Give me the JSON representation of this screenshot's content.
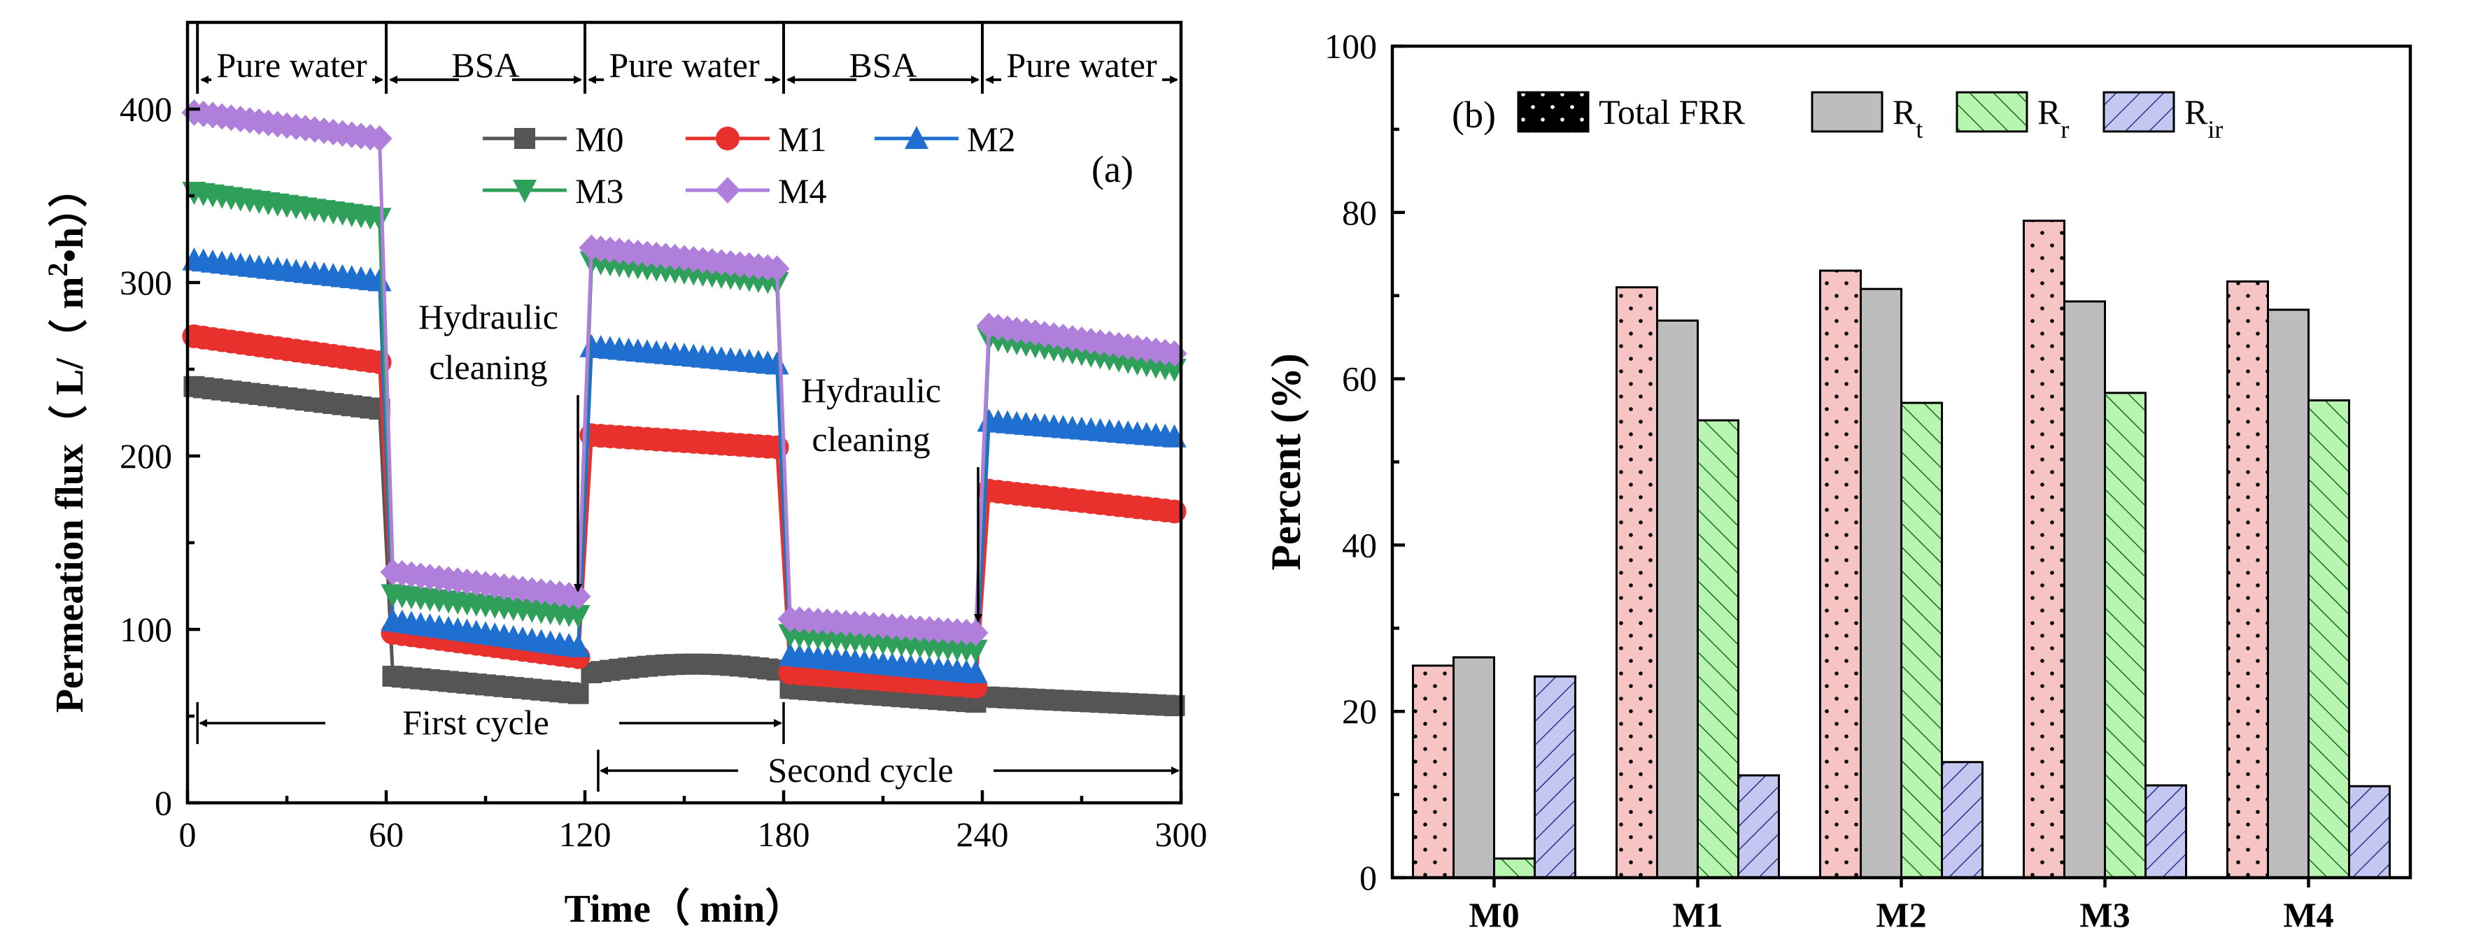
{
  "chart_data": [
    {
      "type": "line",
      "panel_label": "(a)",
      "xlabel": "Time（ min）",
      "ylabel": "Permeation flux（ L/（ m²•h））",
      "ylabel_parts": [
        "Permeation flux（ L/（ m",
        "2",
        "•h））"
      ],
      "xlim": [
        0,
        300
      ],
      "ylim": [
        0,
        450
      ],
      "x_ticks": [
        "0",
        "60",
        "120",
        "180",
        "240",
        "300"
      ],
      "y_ticks": [
        "0",
        "100",
        "200",
        "300",
        "400"
      ],
      "segment_labels": [
        "Pure water",
        "BSA",
        "Pure water",
        "BSA",
        "Pure water"
      ],
      "segment_bounds": [
        3,
        60,
        120,
        180,
        240,
        300
      ],
      "annotations": {
        "hydraulic_1": [
          "Hydraulic",
          "cleaning"
        ],
        "hydraulic_2": [
          "Hydraulic",
          "cleaning"
        ],
        "first_cycle": "First cycle",
        "second_cycle": "Second cycle"
      },
      "legend_position": "top",
      "series": [
        {
          "name": "M0",
          "color": "#555555",
          "marker": "square",
          "segments": [
            [
              240,
              227
            ],
            [
              73,
              63
            ],
            [
              75,
              80
            ],
            [
              66,
              58
            ],
            [
              61,
              56
            ]
          ]
        },
        {
          "name": "M1",
          "color": "#e8312d",
          "marker": "circle",
          "segments": [
            [
              269,
              254
            ],
            [
              98,
              84
            ],
            [
              212,
              205
            ],
            [
              75,
              67
            ],
            [
              180,
              168
            ]
          ]
        },
        {
          "name": "M2",
          "color": "#1f6fd0",
          "marker": "triangle-up",
          "segments": [
            [
              313,
              301
            ],
            [
              105,
              90
            ],
            [
              263,
              253
            ],
            [
              85,
              75
            ],
            [
              220,
              211
            ]
          ]
        },
        {
          "name": "M3",
          "color": "#2ea05a",
          "marker": "triangle-down",
          "segments": [
            [
              352,
              337
            ],
            [
              120,
              108
            ],
            [
              312,
              300
            ],
            [
              97,
              88
            ],
            [
              268,
              250
            ]
          ]
        },
        {
          "name": "M4",
          "color": "#b07fdb",
          "marker": "diamond",
          "segments": [
            [
              398,
              383
            ],
            [
              133,
              119
            ],
            [
              320,
              308
            ],
            [
              106,
              98
            ],
            [
              275,
              259
            ]
          ]
        }
      ]
    },
    {
      "type": "bar",
      "panel_label": "(b)",
      "xlabel": "",
      "ylabel": "Percent (%)",
      "ylim": [
        0,
        100
      ],
      "y_ticks": [
        "0",
        "20",
        "40",
        "60",
        "80",
        "100"
      ],
      "categories": [
        "M0",
        "M1",
        "M2",
        "M3",
        "M4"
      ],
      "legend_position": "top",
      "series": [
        {
          "name": "Total FRR",
          "values": [
            25.5,
            71,
            73,
            79,
            71.7
          ],
          "color": "#f7c4c4",
          "pattern": "dots"
        },
        {
          "name": "Rt",
          "values": [
            26.5,
            67,
            70.8,
            69.3,
            68.3
          ],
          "color": "#bdbdbd",
          "pattern": "solid"
        },
        {
          "name": "Rr",
          "values": [
            2.3,
            55,
            57.1,
            58.3,
            57.4
          ],
          "color": "#b8f5b0",
          "pattern": "hatch"
        },
        {
          "name": "Rir",
          "values": [
            24.2,
            12.3,
            13.9,
            11.1,
            11.0
          ],
          "color": "#c4c8f0",
          "pattern": "backhatch"
        }
      ],
      "legend_labels": [
        {
          "main": "Total FRR",
          "sub": ""
        },
        {
          "main": "R",
          "sub": "t"
        },
        {
          "main": "R",
          "sub": "r"
        },
        {
          "main": "R",
          "sub": "ir"
        }
      ]
    }
  ]
}
